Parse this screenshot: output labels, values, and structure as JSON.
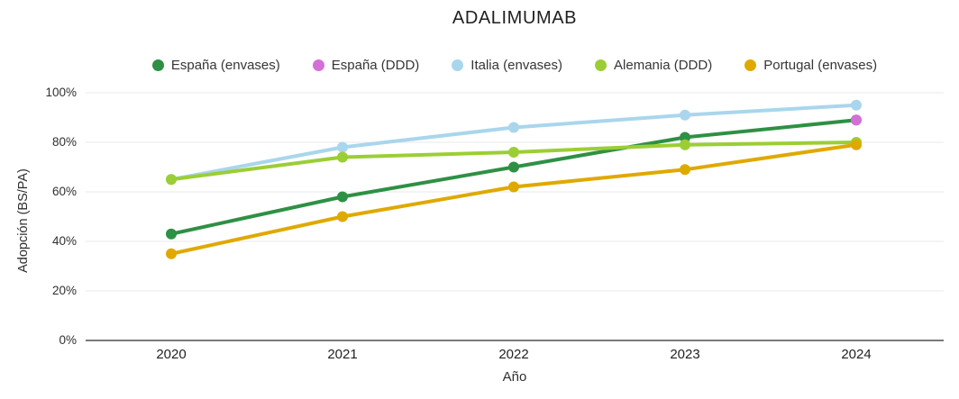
{
  "title": "ADALIMUMAB",
  "chart_data": {
    "type": "line",
    "title": "ADALIMUMAB",
    "xlabel": "Año",
    "ylabel": "Adopción (BS/PA)",
    "categories": [
      "2020",
      "2021",
      "2022",
      "2023",
      "2024"
    ],
    "series": [
      {
        "name": "España (envases)",
        "color": "#2e9044",
        "values": [
          43,
          58,
          70,
          82,
          89
        ]
      },
      {
        "name": "España (DDD)",
        "color": "#d56fd8",
        "values": [
          null,
          null,
          null,
          null,
          89
        ]
      },
      {
        "name": "Italia (envases)",
        "color": "#a9d6ec",
        "values": [
          65,
          78,
          86,
          91,
          95
        ]
      },
      {
        "name": "Alemania (DDD)",
        "color": "#9bce34",
        "values": [
          65,
          74,
          76,
          79,
          80
        ]
      },
      {
        "name": "Portugal (envases)",
        "color": "#dfa900",
        "values": [
          35,
          50,
          62,
          69,
          79
        ]
      }
    ],
    "ylim": [
      0,
      100
    ],
    "yticks": [
      "100%",
      "80%",
      "60%",
      "40%",
      "20%",
      "0%"
    ],
    "grid": true,
    "legend_position": "top",
    "colors": {
      "grid_line": "#e8e8e8",
      "baseline": "#7a7a7a",
      "text": "#2f2f2f"
    }
  }
}
